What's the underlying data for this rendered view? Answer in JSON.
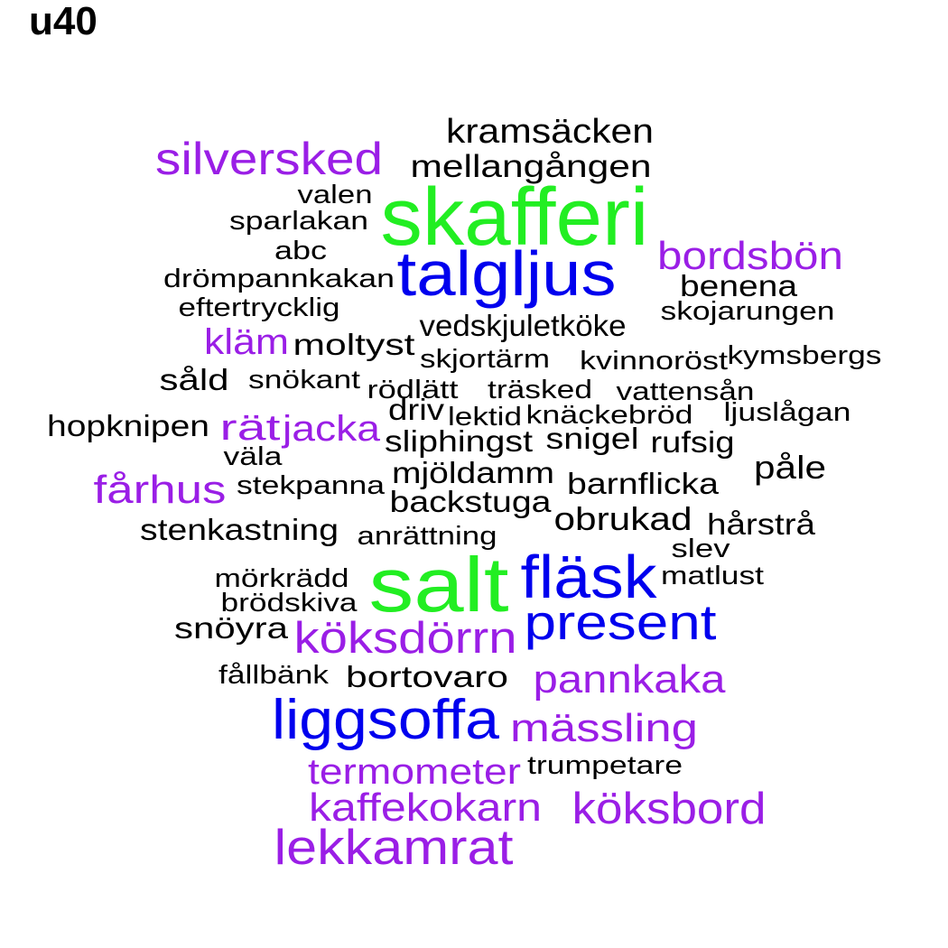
{
  "title": "u40",
  "colors": {
    "green": "#22ee22",
    "blue": "#0000ee",
    "purple": "#9a1ee6",
    "black": "#000000"
  },
  "words": [
    {
      "text": "kramsäcken",
      "color": "black"
    },
    {
      "text": "silversked",
      "color": "purple"
    },
    {
      "text": "mellangången",
      "color": "black"
    },
    {
      "text": "valen",
      "color": "black"
    },
    {
      "text": "skafferi",
      "color": "green"
    },
    {
      "text": "sparlakan",
      "color": "black"
    },
    {
      "text": "abc",
      "color": "black"
    },
    {
      "text": "bordsbön",
      "color": "purple"
    },
    {
      "text": "talgljus",
      "color": "blue"
    },
    {
      "text": "drömpannkakan",
      "color": "black"
    },
    {
      "text": "benena",
      "color": "black"
    },
    {
      "text": "eftertrycklig",
      "color": "black"
    },
    {
      "text": "skojarungen",
      "color": "black"
    },
    {
      "text": "vedskjuletköke",
      "color": "black"
    },
    {
      "text": "kläm",
      "color": "purple"
    },
    {
      "text": "moltyst",
      "color": "black"
    },
    {
      "text": "skjortärm",
      "color": "black"
    },
    {
      "text": "kvinnoröst",
      "color": "black"
    },
    {
      "text": "kymsbergs",
      "color": "black"
    },
    {
      "text": "såld",
      "color": "black"
    },
    {
      "text": "snökant",
      "color": "black"
    },
    {
      "text": "rödlätt",
      "color": "black"
    },
    {
      "text": "träsked",
      "color": "black"
    },
    {
      "text": "vattensån",
      "color": "black"
    },
    {
      "text": "driv",
      "color": "black"
    },
    {
      "text": "lektid",
      "color": "black"
    },
    {
      "text": "knäckebröd",
      "color": "black"
    },
    {
      "text": "ljuslågan",
      "color": "black"
    },
    {
      "text": "hopknipen",
      "color": "black"
    },
    {
      "text": "rät",
      "color": "purple"
    },
    {
      "text": "jacka",
      "color": "purple"
    },
    {
      "text": "sliphingst",
      "color": "black"
    },
    {
      "text": "snigel",
      "color": "black"
    },
    {
      "text": "rufsig",
      "color": "black"
    },
    {
      "text": "väla",
      "color": "black"
    },
    {
      "text": "påle",
      "color": "black"
    },
    {
      "text": "mjöldamm",
      "color": "black"
    },
    {
      "text": "fårhus",
      "color": "purple"
    },
    {
      "text": "stekpanna",
      "color": "black"
    },
    {
      "text": "barnflicka",
      "color": "black"
    },
    {
      "text": "backstuga",
      "color": "black"
    },
    {
      "text": "obrukad",
      "color": "black"
    },
    {
      "text": "hårstrå",
      "color": "black"
    },
    {
      "text": "stenkastning",
      "color": "black"
    },
    {
      "text": "anrättning",
      "color": "black"
    },
    {
      "text": "slev",
      "color": "black"
    },
    {
      "text": "fläsk",
      "color": "blue"
    },
    {
      "text": "mörkrädd",
      "color": "black"
    },
    {
      "text": "salt",
      "color": "green"
    },
    {
      "text": "matlust",
      "color": "black"
    },
    {
      "text": "brödskiva",
      "color": "black"
    },
    {
      "text": "present",
      "color": "blue"
    },
    {
      "text": "snöyra",
      "color": "black"
    },
    {
      "text": "köksdörrn",
      "color": "purple"
    },
    {
      "text": "fållbänk",
      "color": "black"
    },
    {
      "text": "bortovaro",
      "color": "black"
    },
    {
      "text": "pannkaka",
      "color": "purple"
    },
    {
      "text": "liggsoffa",
      "color": "blue"
    },
    {
      "text": "mässling",
      "color": "purple"
    },
    {
      "text": "termometer",
      "color": "purple"
    },
    {
      "text": "trumpetare",
      "color": "black"
    },
    {
      "text": "kaffekokarn",
      "color": "purple"
    },
    {
      "text": "köksbord",
      "color": "purple"
    },
    {
      "text": "lekkamrat",
      "color": "purple"
    }
  ]
}
